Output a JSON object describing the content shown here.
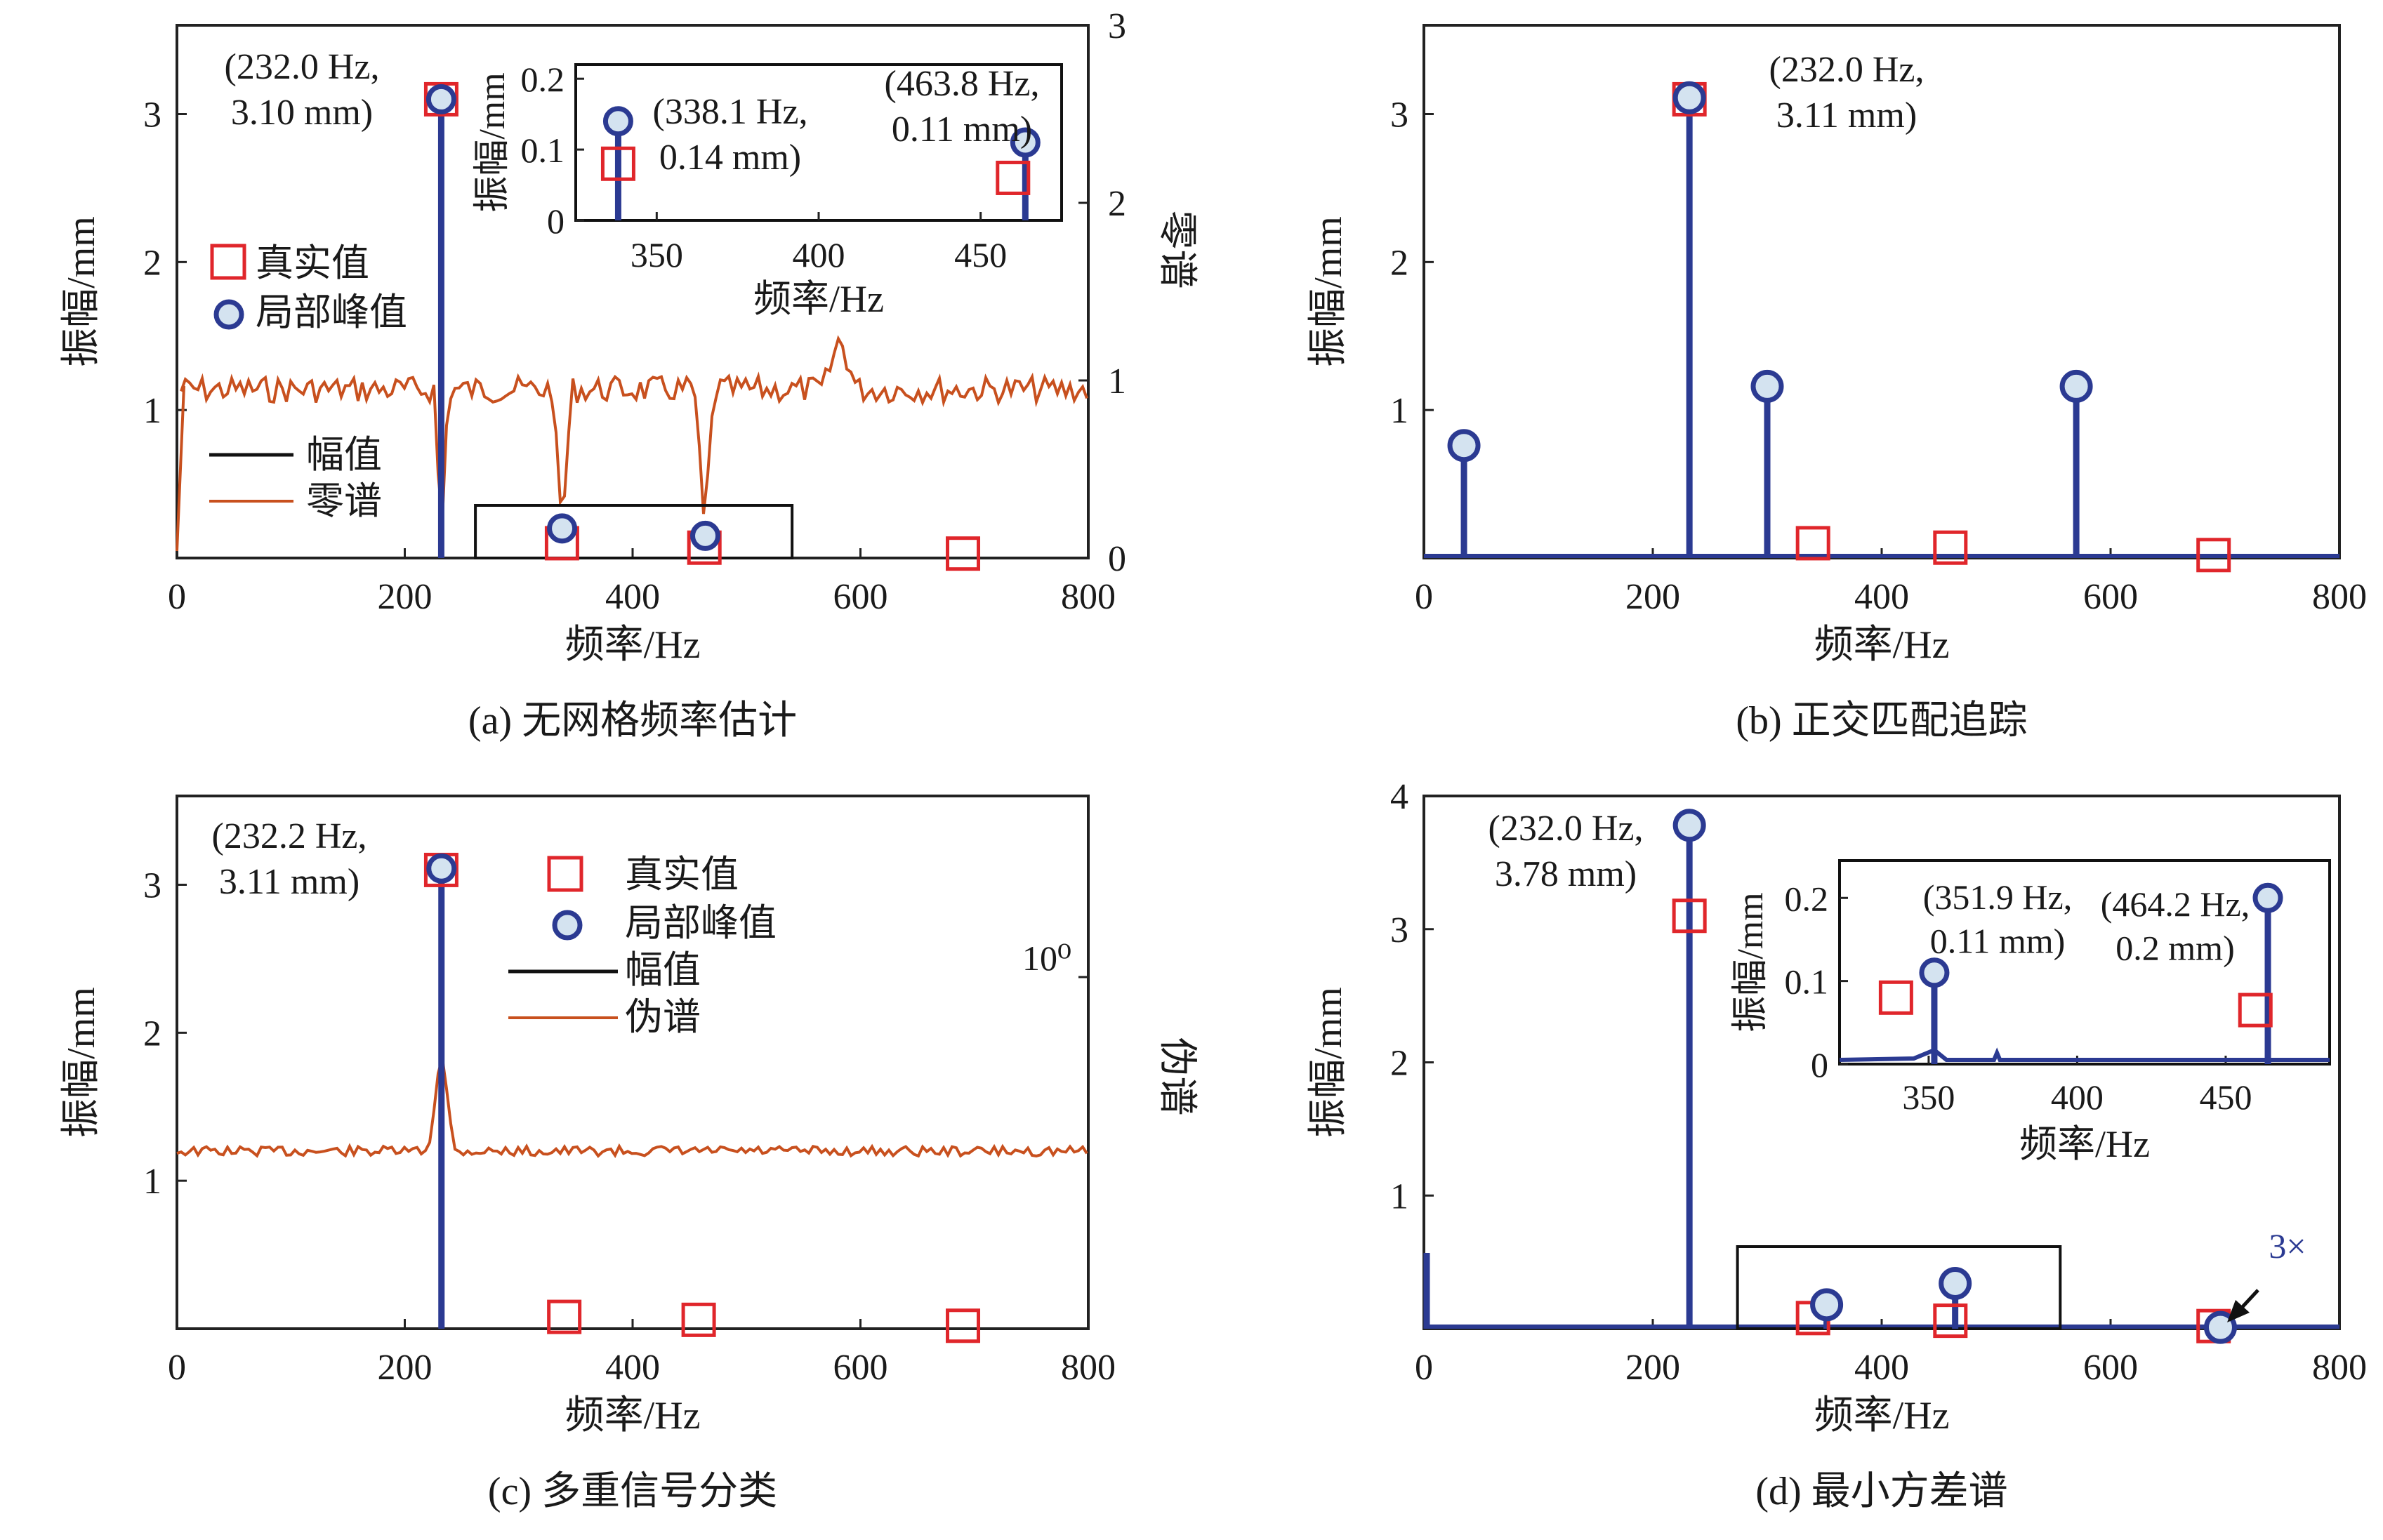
{
  "chart_data": [
    {
      "id": "a",
      "type": "stem",
      "caption": "(a) 无网格频率估计",
      "xlabel": "频率/Hz",
      "ylabel": "振幅/mm",
      "ylabel_right": "零谱",
      "xlim": [
        0,
        800
      ],
      "ylim": [
        0,
        3.6
      ],
      "xticks": [
        "0",
        "200",
        "400",
        "600",
        "800"
      ],
      "yticks": [
        "1",
        "2",
        "3"
      ],
      "yticks_right": [
        "0",
        "1",
        "2",
        "3"
      ],
      "legend_markers": [
        "真实值",
        "局部峰值"
      ],
      "legend_lines": [
        "幅值",
        "零谱"
      ],
      "true_values": [
        {
          "x": 232,
          "y": 3.1
        },
        {
          "x": 338,
          "y": 0.1
        },
        {
          "x": 463,
          "y": 0.07
        },
        {
          "x": 690,
          "y": 0.03
        }
      ],
      "peaks": [
        {
          "x": 232,
          "y": 3.1
        },
        {
          "x": 338.1,
          "y": 0.2
        },
        {
          "x": 463.8,
          "y": 0.15
        }
      ],
      "annotations": [
        {
          "lines": [
            "(232.0 Hz,",
            "3.10 mm)"
          ]
        }
      ],
      "inset": {
        "xlabel": "频率/Hz",
        "ylabel": "振幅/mm",
        "xlim": [
          325,
          475
        ],
        "ylim": [
          0,
          0.22
        ],
        "xticks": [
          "350",
          "400",
          "450"
        ],
        "yticks": [
          "0",
          "0.1",
          "0.2"
        ],
        "true_values": [
          {
            "x": 338.1,
            "y": 0.08
          },
          {
            "x": 460,
            "y": 0.06
          }
        ],
        "peaks": [
          {
            "x": 338.1,
            "y": 0.14
          },
          {
            "x": 463.8,
            "y": 0.11
          }
        ],
        "annotations": [
          {
            "lines": [
              "(338.1 Hz,",
              "0.14 mm)"
            ]
          },
          {
            "lines": [
              "(463.8 Hz,",
              "0.11 mm)"
            ]
          }
        ]
      }
    },
    {
      "id": "b",
      "type": "stem",
      "caption": "(b) 正交匹配追踪",
      "xlabel": "频率/Hz",
      "ylabel": "振幅/mm",
      "xlim": [
        0,
        800
      ],
      "ylim": [
        0,
        3.6
      ],
      "xticks": [
        "0",
        "200",
        "400",
        "600",
        "800"
      ],
      "yticks": [
        "1",
        "2",
        "3"
      ],
      "true_values": [
        {
          "x": 232,
          "y": 3.1
        },
        {
          "x": 340,
          "y": 0.1
        },
        {
          "x": 460,
          "y": 0.07
        },
        {
          "x": 690,
          "y": 0.02
        }
      ],
      "peaks": [
        {
          "x": 35,
          "y": 0.76
        },
        {
          "x": 232,
          "y": 3.11
        },
        {
          "x": 300,
          "y": 1.16
        },
        {
          "x": 570,
          "y": 1.16
        }
      ],
      "annotations": [
        {
          "lines": [
            "(232.0 Hz,",
            "3.11 mm)"
          ]
        }
      ]
    },
    {
      "id": "c",
      "type": "stem",
      "caption": "(c) 多重信号分类",
      "xlabel": "频率/Hz",
      "ylabel": "振幅/mm",
      "ylabel_right": "伪谱",
      "ytick_right": "10⁰",
      "xlim": [
        0,
        800
      ],
      "ylim": [
        0,
        3.6
      ],
      "xticks": [
        "0",
        "200",
        "400",
        "600",
        "800"
      ],
      "yticks": [
        "1",
        "2",
        "3"
      ],
      "legend_markers": [
        "真实值",
        "局部峰值"
      ],
      "legend_lines": [
        "幅值",
        "伪谱"
      ],
      "true_values": [
        {
          "x": 232,
          "y": 3.1
        },
        {
          "x": 340,
          "y": 0.08
        },
        {
          "x": 458,
          "y": 0.06
        },
        {
          "x": 690,
          "y": 0.02
        }
      ],
      "peaks": [
        {
          "x": 232.2,
          "y": 3.11
        }
      ],
      "annotations": [
        {
          "lines": [
            "(232.2 Hz,",
            "3.11 mm)"
          ]
        }
      ]
    },
    {
      "id": "d",
      "type": "stem",
      "caption": "(d) 最小方差谱",
      "xlabel": "频率/Hz",
      "ylabel": "振幅/mm",
      "xlim": [
        0,
        800
      ],
      "ylim": [
        0,
        4
      ],
      "xticks": [
        "0",
        "200",
        "400",
        "600",
        "800"
      ],
      "yticks": [
        "1",
        "2",
        "3",
        "4"
      ],
      "true_values": [
        {
          "x": 232,
          "y": 3.1
        },
        {
          "x": 340,
          "y": 0.08
        },
        {
          "x": 460,
          "y": 0.06
        },
        {
          "x": 690,
          "y": 0.02
        }
      ],
      "peaks": [
        {
          "x": 232,
          "y": 3.78
        },
        {
          "x": 351.9,
          "y": 0.18
        },
        {
          "x": 464.2,
          "y": 0.34
        },
        {
          "x": 696,
          "y": 0.01
        }
      ],
      "annotations": [
        {
          "lines": [
            "(232.0 Hz,",
            "3.78 mm)"
          ]
        },
        {
          "lines": [
            "3×"
          ]
        }
      ],
      "inset": {
        "xlabel": "频率/Hz",
        "ylabel": "振幅/mm",
        "xlim": [
          320,
          485
        ],
        "ylim": [
          0,
          0.245
        ],
        "xticks": [
          "350",
          "400",
          "450"
        ],
        "yticks": [
          "0",
          "0.1",
          "0.2"
        ],
        "true_values": [
          {
            "x": 339,
            "y": 0.08
          },
          {
            "x": 460,
            "y": 0.065
          }
        ],
        "peaks": [
          {
            "x": 351.9,
            "y": 0.11
          },
          {
            "x": 464.2,
            "y": 0.2
          }
        ],
        "annotations": [
          {
            "lines": [
              "(351.9 Hz,",
              "0.11 mm)"
            ]
          },
          {
            "lines": [
              "(464.2 Hz,",
              "0.2 mm)"
            ]
          }
        ]
      }
    }
  ]
}
